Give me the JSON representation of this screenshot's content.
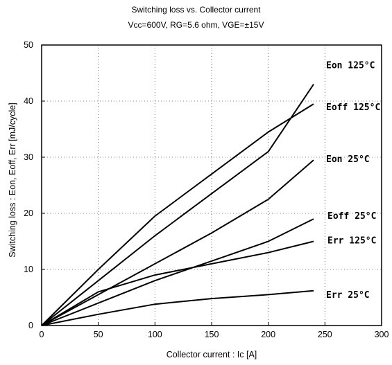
{
  "chart_data": {
    "type": "line",
    "title": "Switching loss  vs.  Collector  current",
    "subtitle": "Vcc=600V, RG=5.6 ohm, VGE=±15V",
    "xlabel": "Collector  current  :  Ic  [A]",
    "ylabel": "Switching  loss  :  Eon, Eoff, Err  [mJ/cycle]",
    "xlim": [
      0,
      300
    ],
    "ylim": [
      0,
      50
    ],
    "xticks": [
      "0",
      "50",
      "100",
      "150",
      "200",
      "250",
      "300"
    ],
    "yticks": [
      "0",
      "10",
      "20",
      "30",
      "40",
      "50"
    ],
    "grid": true,
    "series": [
      {
        "name": "Eon 125°C",
        "x": [
          0,
          50,
          100,
          150,
          200,
          240
        ],
        "y": [
          0,
          8,
          16,
          23.5,
          31,
          43
        ]
      },
      {
        "name": "Eoff 125°C",
        "x": [
          0,
          50,
          100,
          150,
          200,
          240
        ],
        "y": [
          0,
          10,
          19.5,
          27,
          34.5,
          39.5
        ]
      },
      {
        "name": "Eon 25°C",
        "x": [
          0,
          50,
          100,
          150,
          200,
          240
        ],
        "y": [
          0,
          5.5,
          11,
          16.5,
          22.5,
          29.5
        ]
      },
      {
        "name": "Eoff 25°C",
        "x": [
          0,
          50,
          100,
          150,
          200,
          240
        ],
        "y": [
          0,
          4,
          8,
          11.5,
          15,
          19
        ]
      },
      {
        "name": "Err 125°C",
        "x": [
          0,
          50,
          100,
          150,
          200,
          240
        ],
        "y": [
          0,
          6,
          9,
          11,
          13,
          15
        ]
      },
      {
        "name": "Err 25°C",
        "x": [
          0,
          50,
          100,
          150,
          200,
          240
        ],
        "y": [
          0,
          2,
          3.8,
          4.8,
          5.5,
          6.2
        ]
      }
    ]
  }
}
